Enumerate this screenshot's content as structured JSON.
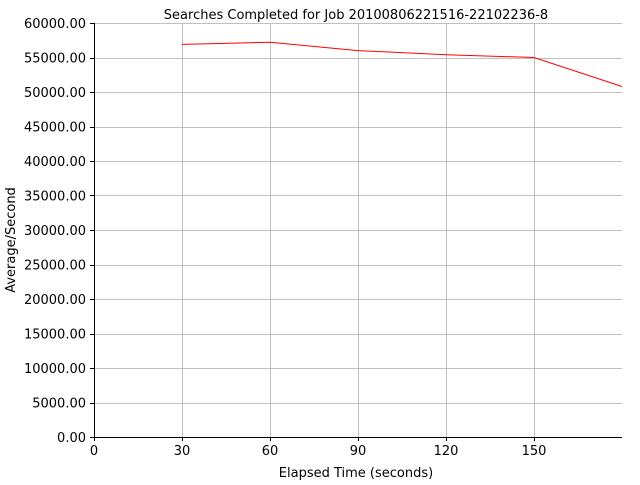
{
  "chart_data": {
    "type": "line",
    "title": "Searches Completed for Job 20100806221516-22102236-8",
    "xlabel": "Elapsed Time (seconds)",
    "ylabel": "Average/Second",
    "xlim": [
      0,
      180
    ],
    "ylim": [
      0,
      60000
    ],
    "x_ticks": [
      0,
      30,
      60,
      90,
      120,
      150
    ],
    "x_tick_labels": [
      "0",
      "30",
      "60",
      "90",
      "120",
      "150"
    ],
    "y_ticks": [
      0,
      5000,
      10000,
      15000,
      20000,
      25000,
      30000,
      35000,
      40000,
      45000,
      50000,
      55000,
      60000
    ],
    "y_tick_labels": [
      "0.00",
      "5000.00",
      "10000.00",
      "15000.00",
      "20000.00",
      "25000.00",
      "30000.00",
      "35000.00",
      "40000.00",
      "45000.00",
      "50000.00",
      "55000.00",
      "60000.00"
    ],
    "grid": true,
    "legend": "none",
    "series": [
      {
        "color": "#ff0000",
        "x": [
          30,
          60,
          90,
          120,
          150,
          180
        ],
        "y": [
          56900,
          57200,
          56000,
          55400,
          55000,
          50800
        ]
      }
    ],
    "colors": {
      "grid": "#c0c0c0",
      "axis": "#000000",
      "background": "#ffffff"
    }
  }
}
